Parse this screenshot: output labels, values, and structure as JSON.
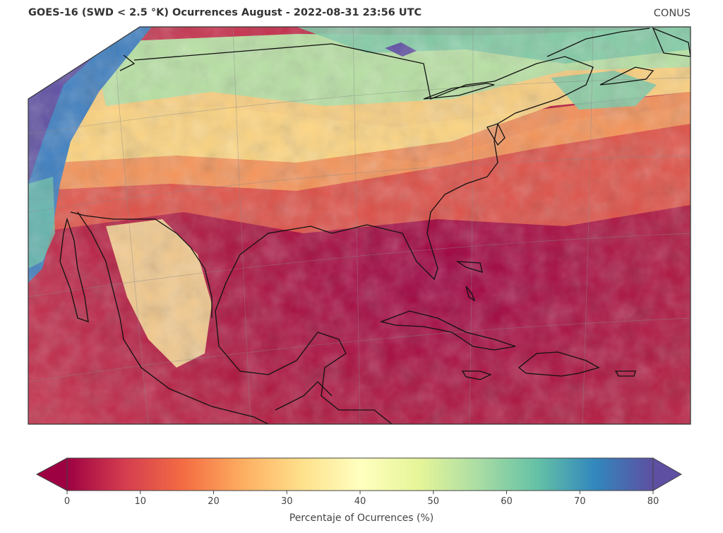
{
  "header": {
    "title": "GOES-16 (SWD < 2.5 °K) Ocurrences August - 2022-08-31 23:56 UTC",
    "region": "CONUS"
  },
  "colorbar": {
    "label": "Percentaje of Ocurrences (%)",
    "ticks": [
      "0",
      "10",
      "20",
      "30",
      "40",
      "50",
      "60",
      "70",
      "80"
    ],
    "colormap": [
      "#9e0142",
      "#d53e4f",
      "#f46d43",
      "#fdae61",
      "#fee08b",
      "#ffffbf",
      "#e6f598",
      "#abdda4",
      "#66c2a5",
      "#3288bd",
      "#5e4fa2"
    ]
  },
  "colors": {
    "frame": "#333333",
    "coastline": "#111111",
    "gridline": "#888888"
  }
}
